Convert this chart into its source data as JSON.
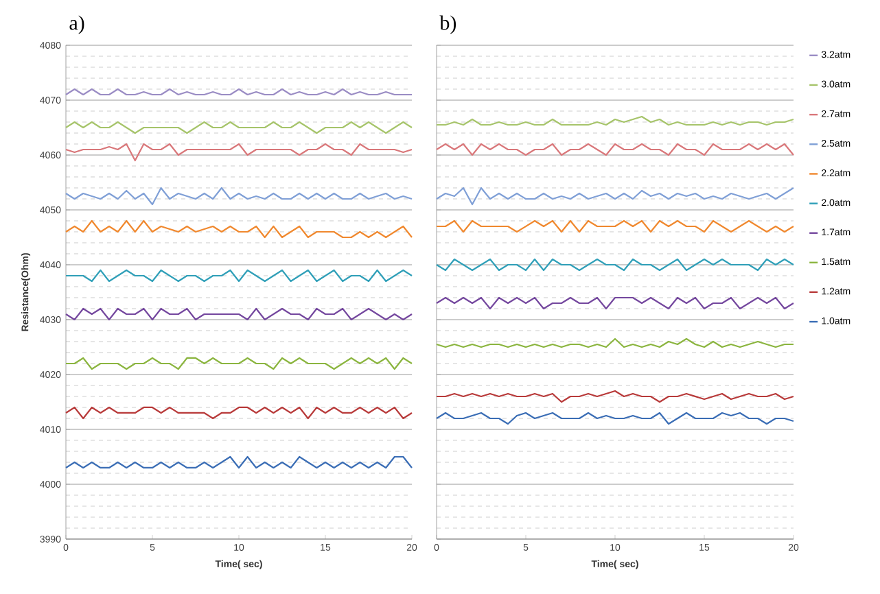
{
  "chart_data": [
    {
      "type": "line",
      "title": "a)",
      "xlabel": "Time( sec)",
      "ylabel": "Resistance(Ohm)",
      "x": [
        0,
        0.5,
        1,
        1.5,
        2,
        2.5,
        3,
        3.5,
        4,
        4.5,
        5,
        5.5,
        6,
        6.5,
        7,
        7.5,
        8,
        8.5,
        9,
        9.5,
        10,
        10.5,
        11,
        11.5,
        12,
        12.5,
        13,
        13.5,
        14,
        14.5,
        15,
        15.5,
        16,
        16.5,
        17,
        17.5,
        18,
        18.5,
        19,
        19.5,
        20
      ],
      "xlim": [
        0,
        20
      ],
      "xticks": [
        0,
        5,
        10,
        15,
        20
      ],
      "ylim": [
        3990,
        4080
      ],
      "yticks": [
        3990,
        4000,
        4010,
        4020,
        4030,
        4040,
        4050,
        4060,
        4070,
        4080
      ],
      "grid": "y",
      "series": [
        {
          "color": "#9a8cc4",
          "values": [
            4071,
            4072,
            4071,
            4072,
            4071,
            4071,
            4072,
            4071,
            4071,
            4071.5,
            4071,
            4071,
            4072,
            4071,
            4071.5,
            4071,
            4071,
            4071.5,
            4071,
            4071,
            4072,
            4071,
            4071.5,
            4071,
            4071,
            4072,
            4071,
            4071.5,
            4071,
            4071,
            4071.5,
            4071,
            4072,
            4071,
            4071.5,
            4071,
            4071,
            4071.5,
            4071,
            4071,
            4071
          ]
        },
        {
          "color": "#a6c46a",
          "values": [
            4065,
            4066,
            4065,
            4066,
            4065,
            4065,
            4066,
            4065,
            4064,
            4065,
            4065,
            4065,
            4065,
            4065,
            4064,
            4065,
            4066,
            4065,
            4065,
            4066,
            4065,
            4065,
            4065,
            4065,
            4066,
            4065,
            4065,
            4066,
            4065,
            4064,
            4065,
            4065,
            4065,
            4066,
            4065,
            4066,
            4065,
            4064,
            4065,
            4066,
            4065
          ]
        },
        {
          "color": "#d9777a",
          "values": [
            4061,
            4060.5,
            4061,
            4061,
            4061,
            4061.5,
            4061,
            4062,
            4059,
            4062,
            4061,
            4061,
            4062,
            4060,
            4061,
            4061,
            4061,
            4061,
            4061,
            4061,
            4062,
            4060,
            4061,
            4061,
            4061,
            4061,
            4061,
            4060,
            4061,
            4061,
            4062,
            4061,
            4061,
            4060,
            4062,
            4061,
            4061,
            4061,
            4061,
            4060.5,
            4061
          ]
        },
        {
          "color": "#7f9fd6",
          "values": [
            4053,
            4052,
            4053,
            4052.5,
            4052,
            4053,
            4052,
            4053.5,
            4052,
            4053,
            4051,
            4054,
            4052,
            4053,
            4052.5,
            4052,
            4053,
            4052,
            4054,
            4052,
            4053,
            4052,
            4052.5,
            4052,
            4053,
            4052,
            4052,
            4053,
            4052,
            4053,
            4052,
            4053,
            4052,
            4052,
            4053,
            4052,
            4052.5,
            4053,
            4052,
            4052.5,
            4052
          ]
        },
        {
          "color": "#f0882e",
          "values": [
            4046,
            4047,
            4046,
            4048,
            4046,
            4047,
            4046,
            4048,
            4046,
            4048,
            4046,
            4047,
            4046.5,
            4046,
            4047,
            4046,
            4046.5,
            4047,
            4046,
            4047,
            4046,
            4046,
            4047,
            4045,
            4047,
            4045,
            4046,
            4047,
            4045,
            4046,
            4046,
            4046,
            4045,
            4045,
            4046,
            4045,
            4046,
            4045,
            4046,
            4047,
            4045
          ]
        },
        {
          "color": "#2f9fb8",
          "values": [
            4038,
            4038,
            4038,
            4037,
            4039,
            4037,
            4038,
            4039,
            4038,
            4038,
            4037,
            4039,
            4038,
            4037,
            4038,
            4038,
            4037,
            4038,
            4038,
            4039,
            4037,
            4039,
            4038,
            4037,
            4038,
            4039,
            4037,
            4038,
            4039,
            4037,
            4038,
            4039,
            4037,
            4038,
            4038,
            4037,
            4039,
            4037,
            4038,
            4039,
            4038
          ]
        },
        {
          "color": "#74479e",
          "values": [
            4031,
            4030,
            4032,
            4031,
            4032,
            4030,
            4032,
            4031,
            4031,
            4032,
            4030,
            4032,
            4031,
            4031,
            4032,
            4030,
            4031,
            4031,
            4031,
            4031,
            4031,
            4030,
            4032,
            4030,
            4031,
            4032,
            4031,
            4031,
            4030,
            4032,
            4031,
            4031,
            4032,
            4030,
            4031,
            4032,
            4031,
            4030,
            4031,
            4030,
            4031
          ]
        },
        {
          "color": "#8bb53f",
          "values": [
            4022,
            4022,
            4023,
            4021,
            4022,
            4022,
            4022,
            4021,
            4022,
            4022,
            4023,
            4022,
            4022,
            4021,
            4023,
            4023,
            4022,
            4023,
            4022,
            4022,
            4022,
            4023,
            4022,
            4022,
            4021,
            4023,
            4022,
            4023,
            4022,
            4022,
            4022,
            4021,
            4022,
            4023,
            4022,
            4023,
            4022,
            4023,
            4021,
            4023,
            4022
          ]
        },
        {
          "color": "#b83a3a",
          "values": [
            4013,
            4014,
            4012,
            4014,
            4013,
            4014,
            4013,
            4013,
            4013,
            4014,
            4014,
            4013,
            4014,
            4013,
            4013,
            4013,
            4013,
            4012,
            4013,
            4013,
            4014,
            4014,
            4013,
            4014,
            4013,
            4014,
            4013,
            4014,
            4012,
            4014,
            4013,
            4014,
            4013,
            4013,
            4014,
            4013,
            4014,
            4013,
            4014,
            4012,
            4013
          ]
        },
        {
          "color": "#3a6db5",
          "values": [
            4003,
            4004,
            4003,
            4004,
            4003,
            4003,
            4004,
            4003,
            4004,
            4003,
            4003,
            4004,
            4003,
            4004,
            4003,
            4003,
            4004,
            4003,
            4004,
            4005,
            4003,
            4005,
            4003,
            4004,
            4003,
            4004,
            4003,
            4005,
            4004,
            4003,
            4004,
            4003,
            4004,
            4003,
            4004,
            4003,
            4004,
            4003,
            4005,
            4005,
            4003
          ]
        }
      ]
    },
    {
      "type": "line",
      "title": "b)",
      "xlabel": "Time( sec)",
      "x": [
        0,
        0.5,
        1,
        1.5,
        2,
        2.5,
        3,
        3.5,
        4,
        4.5,
        5,
        5.5,
        6,
        6.5,
        7,
        7.5,
        8,
        8.5,
        9,
        9.5,
        10,
        10.5,
        11,
        11.5,
        12,
        12.5,
        13,
        13.5,
        14,
        14.5,
        15,
        15.5,
        16,
        16.5,
        17,
        17.5,
        18,
        18.5,
        19,
        19.5,
        20
      ],
      "xlim": [
        0,
        20
      ],
      "xticks": [
        0,
        5,
        10,
        15,
        20
      ],
      "ylim": [
        3990,
        4080
      ],
      "yticks": [
        3990,
        4000,
        4010,
        4020,
        4030,
        4040,
        4050,
        4060,
        4070,
        4080
      ],
      "grid": "y",
      "legend": "right",
      "tick_labels": "x",
      "series": [
        {
          "name": "3.2atm",
          "color": "#9a8cc4",
          "values": [
            null,
            null,
            null,
            null,
            null,
            null,
            null,
            null,
            null,
            null,
            null,
            null,
            null,
            null,
            null,
            null,
            null,
            null,
            null,
            null,
            null,
            null,
            null,
            null,
            null,
            null,
            null,
            null,
            null,
            null,
            null,
            null,
            null,
            null,
            null,
            null,
            null,
            null,
            null,
            null,
            null
          ]
        },
        {
          "name": "3.0atm",
          "color": "#a6c46a",
          "values": [
            4065.5,
            4065.5,
            4066,
            4065.5,
            4066.5,
            4065.5,
            4065.5,
            4066,
            4065.5,
            4065.5,
            4066,
            4065.5,
            4065.5,
            4066.5,
            4065.5,
            4065.5,
            4065.5,
            4065.5,
            4066,
            4065.5,
            4066.5,
            4066,
            4066.5,
            4067,
            4066,
            4066.5,
            4065.5,
            4066,
            4065.5,
            4065.5,
            4065.5,
            4066,
            4065.5,
            4066,
            4065.5,
            4066,
            4066,
            4065.5,
            4066,
            4066,
            4066.5
          ]
        },
        {
          "name": "2.7atm",
          "color": "#d9777a",
          "values": [
            4061,
            4062,
            4061,
            4062,
            4060,
            4062,
            4061,
            4062,
            4061,
            4061,
            4060,
            4061,
            4061,
            4062,
            4060,
            4061,
            4061,
            4062,
            4061,
            4060,
            4062,
            4061,
            4061,
            4062,
            4061,
            4061,
            4060,
            4062,
            4061,
            4061,
            4060,
            4062,
            4061,
            4061,
            4061,
            4062,
            4061,
            4062,
            4061,
            4062,
            4060
          ]
        },
        {
          "name": "2.5atm",
          "color": "#7f9fd6",
          "values": [
            4052,
            4053,
            4052.5,
            4054,
            4051,
            4054,
            4052,
            4053,
            4052,
            4053,
            4052,
            4052,
            4053,
            4052,
            4052.5,
            4052,
            4053,
            4052,
            4052.5,
            4053,
            4052,
            4053,
            4052,
            4053.5,
            4052.5,
            4053,
            4052,
            4053,
            4052.5,
            4053,
            4052,
            4052.5,
            4052,
            4053,
            4052.5,
            4052,
            4052.5,
            4053,
            4052,
            4053,
            4054
          ]
        },
        {
          "name": "2.2atm",
          "color": "#f0882e",
          "values": [
            4047,
            4047,
            4048,
            4046,
            4048,
            4047,
            4047,
            4047,
            4047,
            4046,
            4047,
            4048,
            4047,
            4048,
            4046,
            4048,
            4046,
            4048,
            4047,
            4047,
            4047,
            4048,
            4047,
            4048,
            4046,
            4048,
            4047,
            4048,
            4047,
            4047,
            4046,
            4048,
            4047,
            4046,
            4047,
            4048,
            4047,
            4046,
            4047,
            4046,
            4047
          ]
        },
        {
          "name": "2.0atm",
          "color": "#2f9fb8",
          "values": [
            4040,
            4039,
            4041,
            4040,
            4039,
            4040,
            4041,
            4039,
            4040,
            4040,
            4039,
            4041,
            4039,
            4041,
            4040,
            4040,
            4039,
            4040,
            4041,
            4040,
            4040,
            4039,
            4041,
            4040,
            4040,
            4039,
            4040,
            4041,
            4039,
            4040,
            4041,
            4040,
            4041,
            4040,
            4040,
            4040,
            4039,
            4041,
            4040,
            4041,
            4040
          ]
        },
        {
          "name": "1.7atm",
          "color": "#74479e",
          "values": [
            4033,
            4034,
            4033,
            4034,
            4033,
            4034,
            4032,
            4034,
            4033,
            4034,
            4033,
            4034,
            4032,
            4033,
            4033,
            4034,
            4033,
            4033,
            4034,
            4032,
            4034,
            4034,
            4034,
            4033,
            4034,
            4033,
            4032,
            4034,
            4033,
            4034,
            4032,
            4033,
            4033,
            4034,
            4032,
            4033,
            4034,
            4033,
            4034,
            4032,
            4033
          ]
        },
        {
          "name": "1.5atm",
          "color": "#8bb53f",
          "values": [
            4025.5,
            4025,
            4025.5,
            4025,
            4025.5,
            4025,
            4025.5,
            4025.5,
            4025,
            4025.5,
            4025,
            4025.5,
            4025,
            4025.5,
            4025,
            4025.5,
            4025.5,
            4025,
            4025.5,
            4025,
            4026.5,
            4025,
            4025.5,
            4025,
            4025.5,
            4025,
            4026,
            4025.5,
            4026.5,
            4025.5,
            4025,
            4026,
            4025,
            4025.5,
            4025,
            4025.5,
            4026,
            4025.5,
            4025,
            4025.5,
            4025.5
          ]
        },
        {
          "name": "1.2atm",
          "color": "#b83a3a",
          "values": [
            4016,
            4016,
            4016.5,
            4016,
            4016.5,
            4016,
            4016.5,
            4016,
            4016.5,
            4016,
            4016,
            4016.5,
            4016,
            4016.5,
            4015,
            4016,
            4016,
            4016.5,
            4016,
            4016.5,
            4017,
            4016,
            4016.5,
            4016,
            4016,
            4015,
            4016,
            4016,
            4016.5,
            4016,
            4015.5,
            4016,
            4016.5,
            4015.5,
            4016,
            4016.5,
            4016,
            4016,
            4016.5,
            4015.5,
            4016
          ]
        },
        {
          "name": "1.0atm",
          "color": "#3a6db5",
          "values": [
            4012,
            4013,
            4012,
            4012,
            4012.5,
            4013,
            4012,
            4012,
            4011,
            4012.5,
            4013,
            4012,
            4012.5,
            4013,
            4012,
            4012,
            4012,
            4013,
            4012,
            4012.5,
            4012,
            4012,
            4012.5,
            4012,
            4012,
            4013,
            4011,
            4012,
            4013,
            4012,
            4012,
            4012,
            4013,
            4012.5,
            4013,
            4012,
            4012,
            4011,
            4012,
            4012,
            4011.5
          ]
        }
      ]
    }
  ]
}
